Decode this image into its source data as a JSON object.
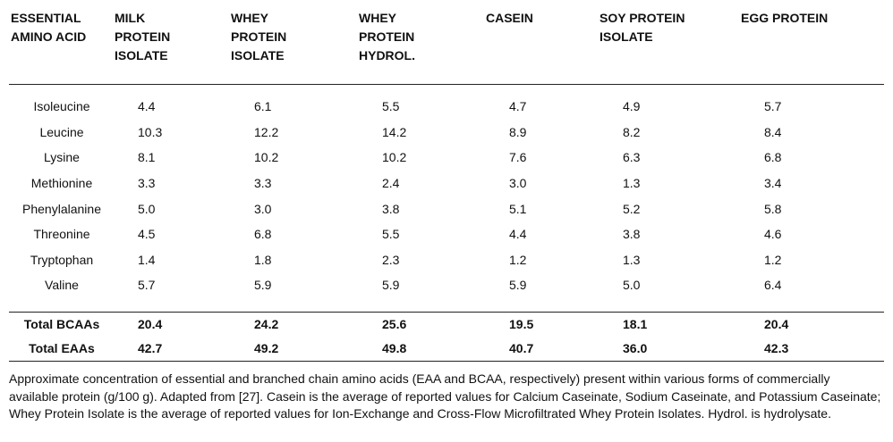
{
  "headers": [
    [
      "ESSENTIAL",
      "AMINO ACID"
    ],
    [
      "MILK",
      "PROTEIN",
      "ISOLATE"
    ],
    [
      "WHEY",
      "PROTEIN",
      "ISOLATE"
    ],
    [
      "WHEY",
      "PROTEIN",
      "HYDROL."
    ],
    [
      "CASEIN"
    ],
    [
      "SOY PROTEIN",
      "ISOLATE"
    ],
    [
      "EGG PROTEIN"
    ]
  ],
  "rows": [
    {
      "name": "Isoleucine",
      "values": [
        "4.4",
        "6.1",
        "5.5",
        "4.7",
        "4.9",
        "5.7"
      ]
    },
    {
      "name": "Leucine",
      "values": [
        "10.3",
        "12.2",
        "14.2",
        "8.9",
        "8.2",
        "8.4"
      ]
    },
    {
      "name": "Lysine",
      "values": [
        "8.1",
        "10.2",
        "10.2",
        "7.6",
        "6.3",
        "6.8"
      ]
    },
    {
      "name": "Methionine",
      "values": [
        "3.3",
        "3.3",
        "2.4",
        "3.0",
        "1.3",
        "3.4"
      ]
    },
    {
      "name": "Phenylalanine",
      "values": [
        "5.0",
        "3.0",
        "3.8",
        "5.1",
        "5.2",
        "5.8"
      ]
    },
    {
      "name": "Threonine",
      "values": [
        "4.5",
        "6.8",
        "5.5",
        "4.4",
        "3.8",
        "4.6"
      ]
    },
    {
      "name": "Tryptophan",
      "values": [
        "1.4",
        "1.8",
        "2.3",
        "1.2",
        "1.3",
        "1.2"
      ]
    },
    {
      "name": "Valine",
      "values": [
        "5.7",
        "5.9",
        "5.9",
        "5.9",
        "5.0",
        "6.4"
      ]
    }
  ],
  "totals": [
    {
      "name": "Total BCAAs",
      "values": [
        "20.4",
        "24.2",
        "25.6",
        "19.5",
        "18.1",
        "20.4"
      ]
    },
    {
      "name": "Total EAAs",
      "values": [
        "42.7",
        "49.2",
        "49.8",
        "40.7",
        "36.0",
        "42.3"
      ]
    }
  ],
  "caption": "Approximate concentration of essential and branched chain amino acids (EAA and BCAA, respectively) present within various forms of commercially available protein (g/100 g). Adapted from [27]. Casein is the average of reported values for Calcium Caseinate, Sodium Caseinate, and Potassium Caseinate; Whey Protein Isolate is the average of reported values for Ion-Exchange and Cross-Flow Microfiltrated Whey Protein Isolates. Hydrol. is hydrolysate."
}
